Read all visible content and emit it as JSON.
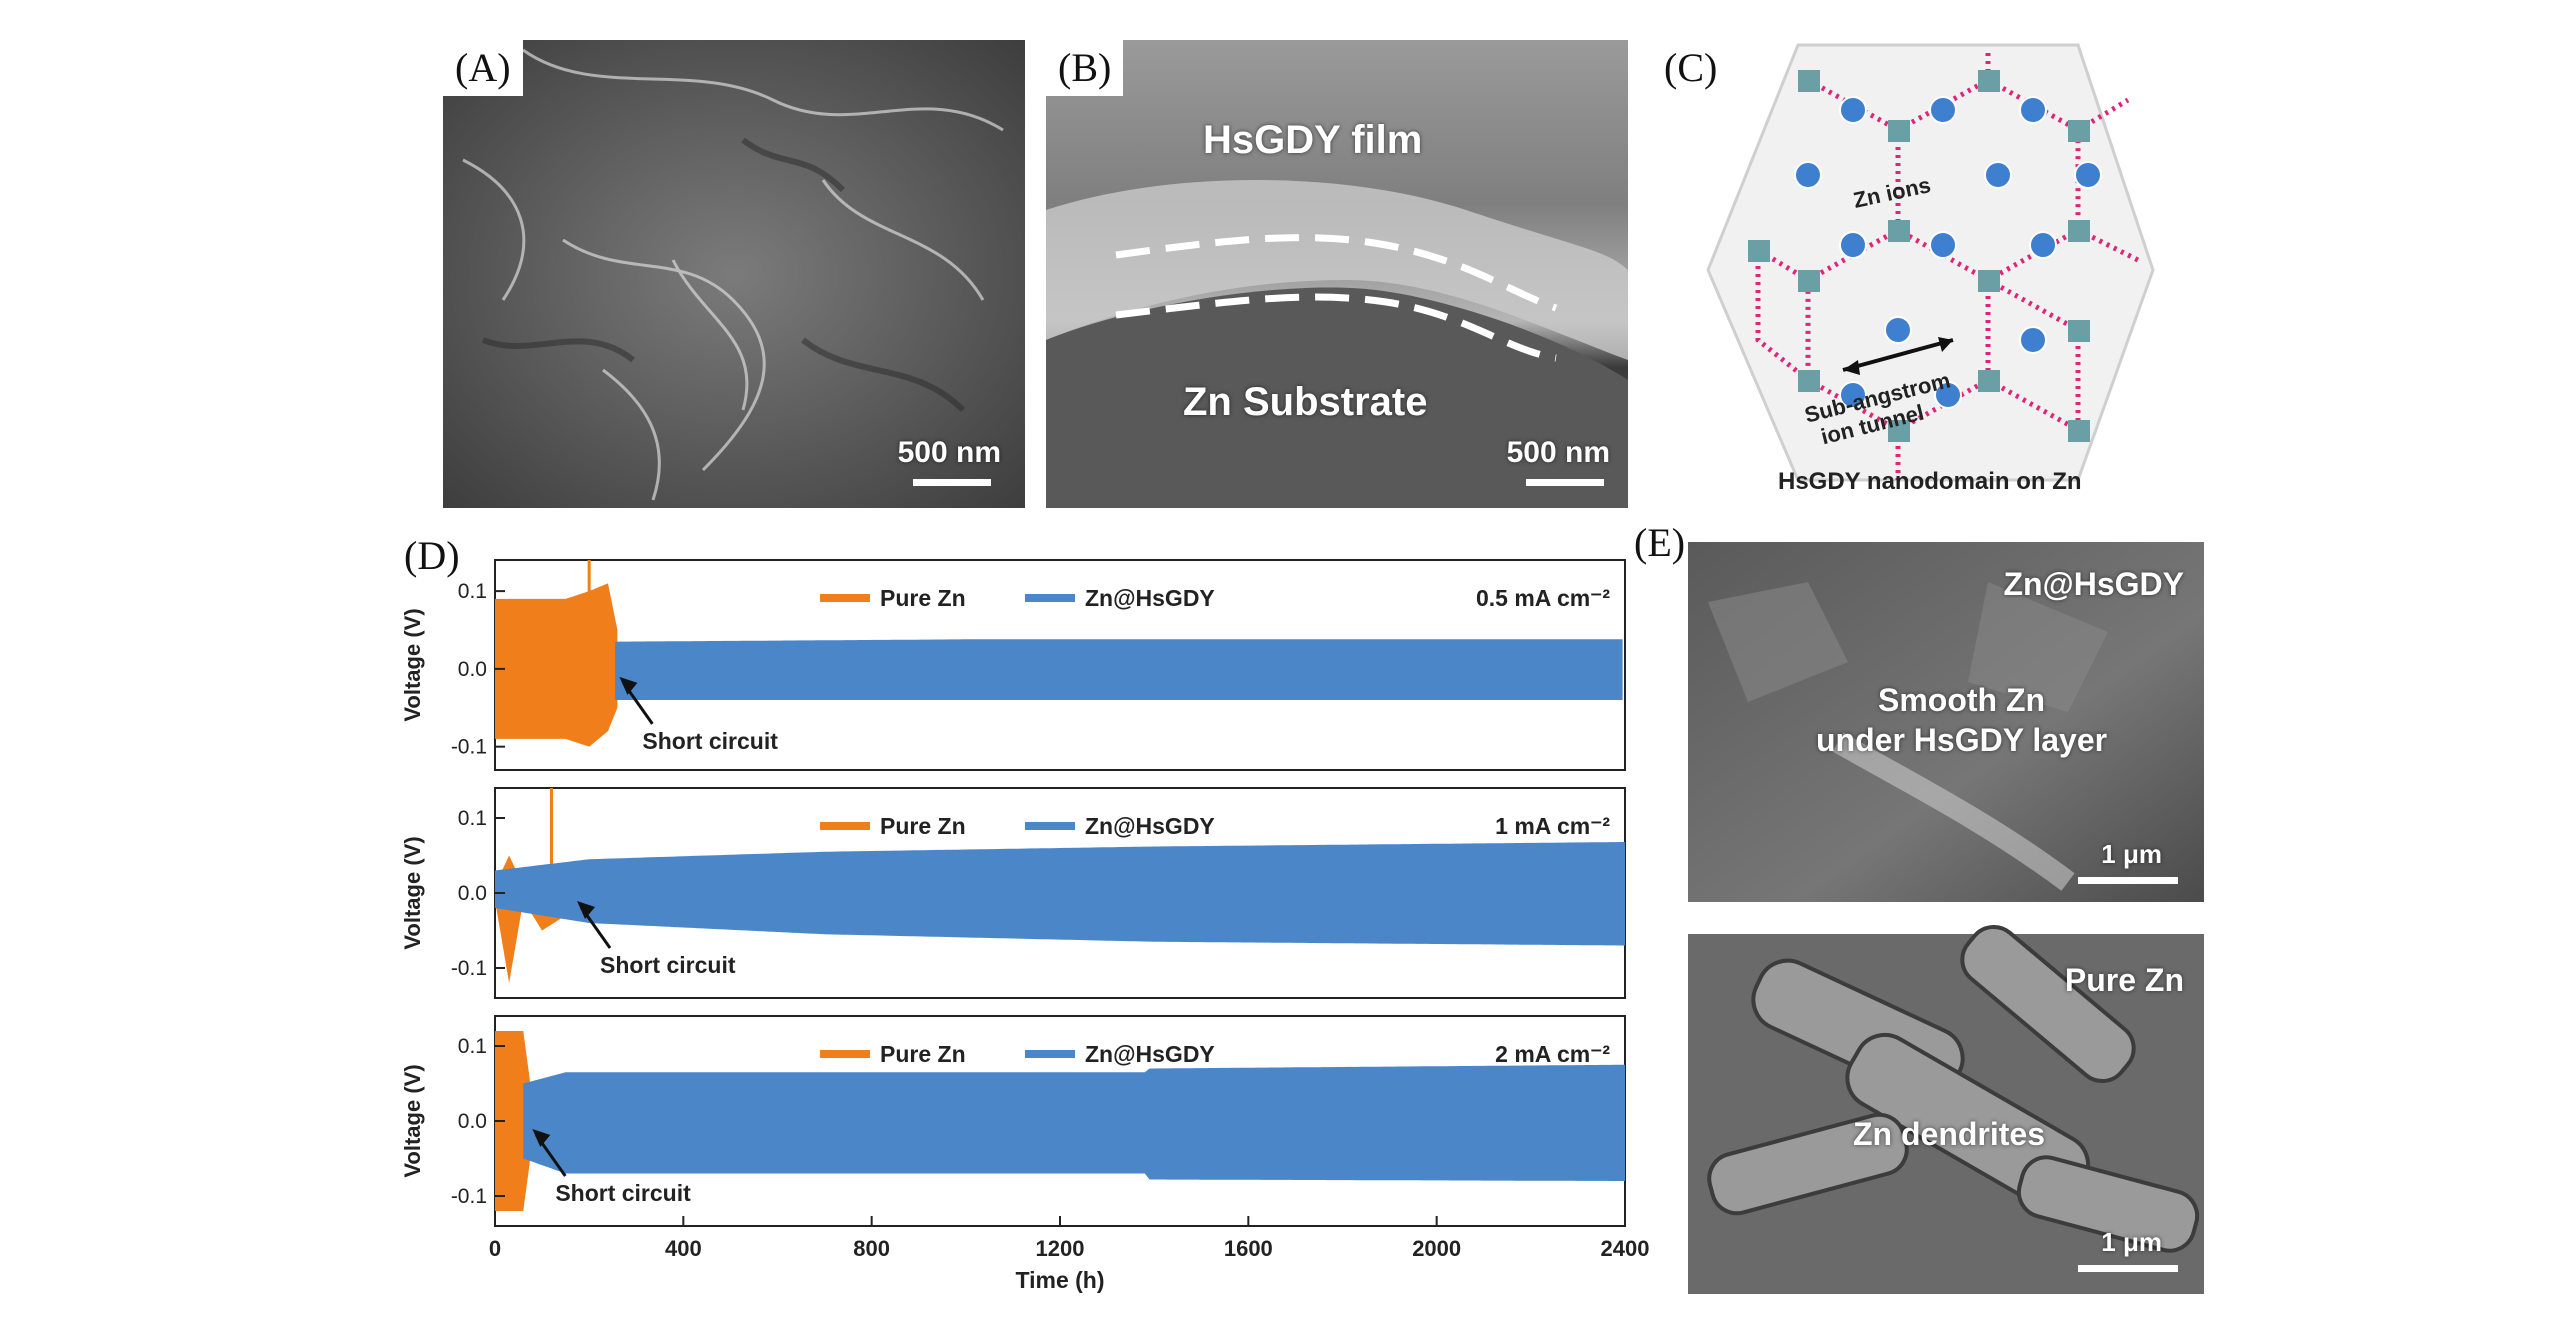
{
  "panels": {
    "A": {
      "label": "(A)",
      "scale": "500 nm"
    },
    "B": {
      "label": "(B)",
      "film": "HsGDY film",
      "substrate": "Zn Substrate",
      "scale": "500 nm"
    },
    "C": {
      "label": "(C)",
      "ions": "Zn ions",
      "tunnel_line1": "Sub-angstrom",
      "tunnel_line2": "ion tunnel",
      "caption": "HsGDY nanodomain on Zn"
    },
    "D": {
      "label": "(D)"
    },
    "E": {
      "label": "(E)",
      "top": {
        "title": "Zn@HsGDY",
        "line1": "Smooth Zn",
        "line2": "under HsGDY layer",
        "scale": "1 μm"
      },
      "bottom": {
        "title": "Pure Zn",
        "text": "Zn dendrites",
        "scale": "1 μm"
      }
    }
  },
  "chart_data": {
    "type": "line",
    "xlabel": "Time (h)",
    "ylabel": "Voltage (V)",
    "xlim": [
      0,
      2400
    ],
    "xticks": [
      0,
      400,
      800,
      1200,
      1600,
      2000,
      2400
    ],
    "yticks": [
      -0.1,
      0.0,
      0.1
    ],
    "ytick_labels": [
      "-0.1",
      "0.0",
      "0.1"
    ],
    "colors": {
      "pure": "#f07f1b",
      "hsgdy": "#4a86c8"
    },
    "legend": [
      "Pure Zn",
      "Zn@HsGDY"
    ],
    "annotation": "Short circuit",
    "subplots": [
      {
        "current_density": "0.5 mA cm⁻²",
        "ylim": [
          -0.13,
          0.14
        ],
        "series": [
          {
            "name": "Pure Zn",
            "x_range": [
              0,
              260
            ],
            "envelope": [
              [
                0,
                0.09,
                -0.09
              ],
              [
                150,
                0.09,
                -0.09
              ],
              [
                200,
                0.1,
                -0.1
              ],
              [
                240,
                0.11,
                -0.08
              ],
              [
                260,
                0.05,
                -0.05
              ]
            ],
            "spike": [
              200,
              0.14
            ]
          },
          {
            "name": "Zn@HsGDY",
            "x_range": [
              255,
              2400
            ],
            "envelope": [
              [
                255,
                0.035,
                -0.04
              ],
              [
                1000,
                0.038,
                -0.04
              ],
              [
                2400,
                0.038,
                -0.04
              ]
            ]
          }
        ],
        "short_circuit_time": 260
      },
      {
        "current_density": "1 mA cm⁻²",
        "ylim": [
          -0.14,
          0.14
        ],
        "series": [
          {
            "name": "Pure Zn",
            "x_range": [
              0,
              170
            ],
            "envelope": [
              [
                0,
                0.01,
                -0.01
              ],
              [
                30,
                0.05,
                -0.12
              ],
              [
                60,
                0.01,
                -0.01
              ],
              [
                100,
                0.03,
                -0.05
              ],
              [
                150,
                0.03,
                -0.03
              ],
              [
                170,
                0.01,
                -0.01
              ]
            ],
            "spike": [
              120,
              0.15
            ]
          },
          {
            "name": "Zn@HsGDY",
            "x_range": [
              0,
              2400
            ],
            "envelope": [
              [
                0,
                0.03,
                -0.02
              ],
              [
                200,
                0.045,
                -0.04
              ],
              [
                700,
                0.055,
                -0.055
              ],
              [
                1400,
                0.062,
                -0.065
              ],
              [
                2400,
                0.068,
                -0.07
              ]
            ]
          }
        ],
        "short_circuit_time": 170
      },
      {
        "current_density": "2 mA cm⁻²",
        "ylim": [
          -0.14,
          0.14
        ],
        "series": [
          {
            "name": "Pure Zn",
            "x_range": [
              0,
              75
            ],
            "envelope": [
              [
                0,
                0.12,
                -0.12
              ],
              [
                60,
                0.12,
                -0.12
              ],
              [
                75,
                0.05,
                -0.05
              ]
            ]
          },
          {
            "name": "Zn@HsGDY",
            "x_range": [
              60,
              2400
            ],
            "envelope": [
              [
                60,
                0.05,
                -0.05
              ],
              [
                150,
                0.065,
                -0.07
              ],
              [
                1380,
                0.065,
                -0.07
              ],
              [
                1390,
                0.07,
                -0.078
              ],
              [
                2400,
                0.075,
                -0.08
              ]
            ]
          }
        ],
        "short_circuit_time": 75
      }
    ]
  }
}
